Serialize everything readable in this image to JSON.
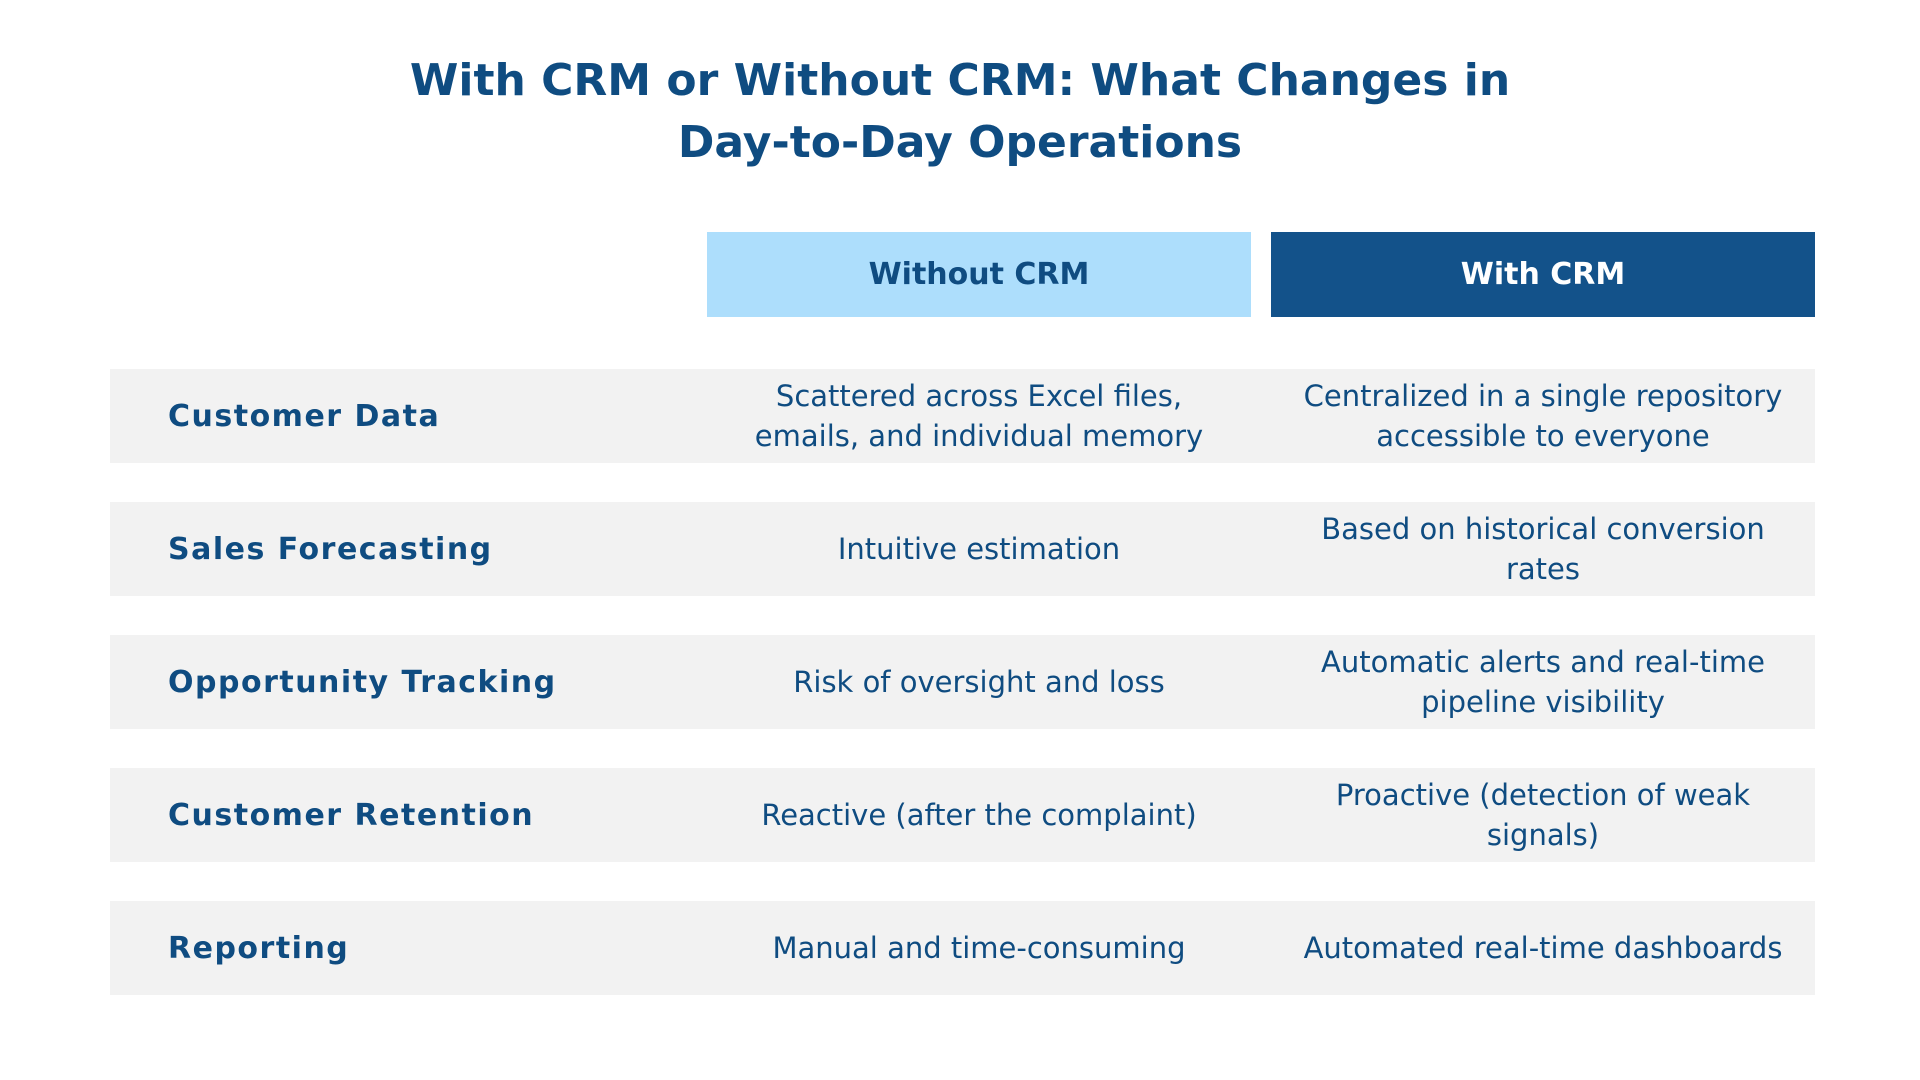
{
  "title": {
    "line1": "With CRM or Without CRM: What Changes in",
    "line2": "Day-to-Day Operations"
  },
  "columns": {
    "without": "Without CRM",
    "with": "With CRM"
  },
  "rows": [
    {
      "label": "Customer Data",
      "without": "Scattered across Excel files, emails, and individual memory",
      "with": "Centralized in a single repository accessible to everyone"
    },
    {
      "label": "Sales Forecasting",
      "without": "Intuitive estimation",
      "with": "Based on historical conversion rates"
    },
    {
      "label": "Opportunity Tracking",
      "without": "Risk of oversight and loss",
      "with": "Automatic alerts and real-time pipeline visibility"
    },
    {
      "label": "Customer Retention",
      "without": "Reactive (after the complaint)",
      "with": "Proactive (detection of weak signals)"
    },
    {
      "label": "Reporting",
      "without": "Manual and time-consuming",
      "with": "Automated real-time dashboards"
    }
  ],
  "colors": {
    "primary": "#0f4c81",
    "header_light": "#addefc",
    "header_dark": "#13528a",
    "row_bg": "#f2f2f2"
  }
}
